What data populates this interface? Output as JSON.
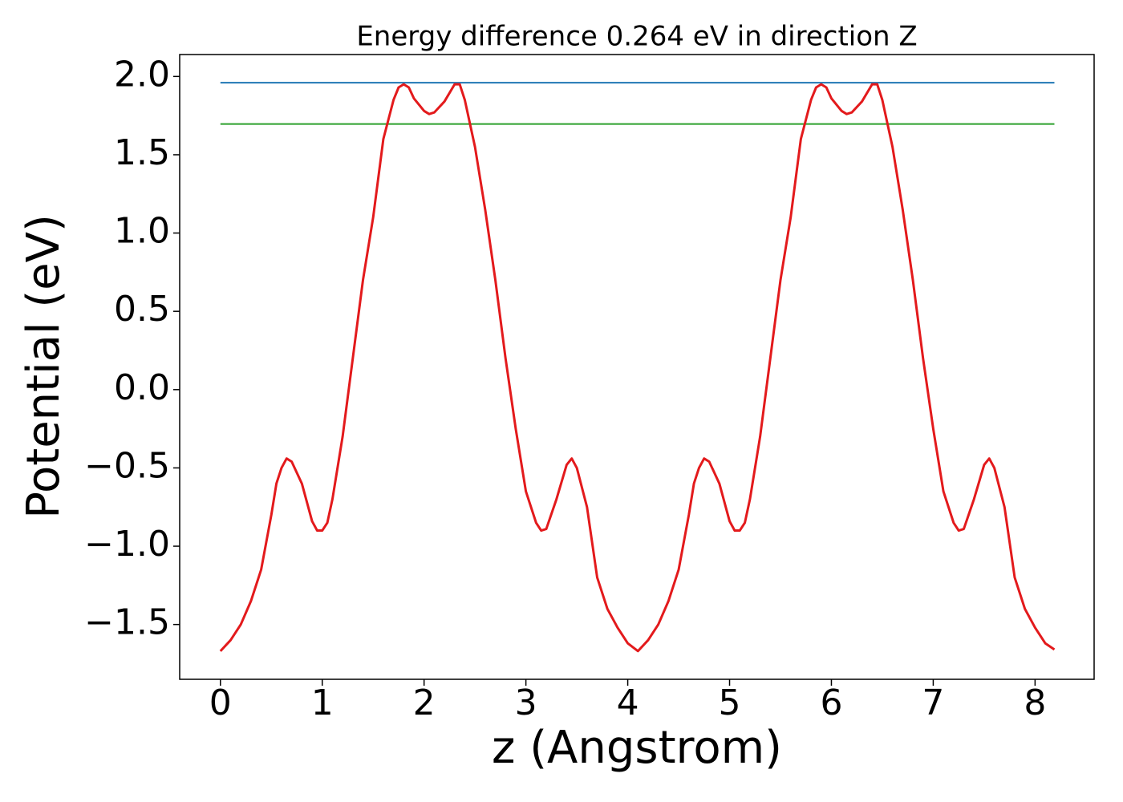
{
  "chart_data": {
    "type": "line",
    "title": "Energy difference 0.264 eV in direction Z",
    "xlabel": "z (Angstrom)",
    "ylabel": "Potential (eV)",
    "xlim": [
      -0.4,
      8.58
    ],
    "ylim": [
      -1.85,
      2.14
    ],
    "xticks": [
      0,
      1,
      2,
      3,
      4,
      5,
      6,
      7,
      8
    ],
    "yticks": [
      {
        "value": -1.5,
        "label": "−1.5"
      },
      {
        "value": -1.0,
        "label": "−1.0"
      },
      {
        "value": -0.5,
        "label": "−0.5"
      },
      {
        "value": 0.0,
        "label": "0.0"
      },
      {
        "value": 0.5,
        "label": "0.5"
      },
      {
        "value": 1.0,
        "label": "1.0"
      },
      {
        "value": 1.5,
        "label": "1.5"
      },
      {
        "value": 2.0,
        "label": "2.0"
      }
    ],
    "grid": false,
    "series": [
      {
        "color": "#1f77b4",
        "x": [
          0,
          8.19
        ],
        "values": [
          1.96,
          1.96
        ]
      },
      {
        "color": "#2ca02c",
        "x": [
          0,
          8.19
        ],
        "values": [
          1.696,
          1.696
        ]
      },
      {
        "color": "#e31a1c",
        "x": [
          0,
          0.1,
          0.2,
          0.3,
          0.4,
          0.5,
          0.55,
          0.6,
          0.65,
          0.7,
          0.8,
          0.9,
          0.95,
          1.0,
          1.05,
          1.1,
          1.2,
          1.3,
          1.4,
          1.5,
          1.6,
          1.7,
          1.75,
          1.8,
          1.85,
          1.9,
          2.0,
          2.05,
          2.1,
          2.2,
          2.3,
          2.35,
          2.4,
          2.5,
          2.6,
          2.7,
          2.8,
          2.9,
          3.0,
          3.1,
          3.15,
          3.2,
          3.3,
          3.4,
          3.45,
          3.5,
          3.6,
          3.7,
          3.8,
          3.9,
          4.0,
          4.1,
          4.2,
          4.3,
          4.4,
          4.5,
          4.6,
          4.65,
          4.7,
          4.75,
          4.8,
          4.9,
          5.0,
          5.05,
          5.1,
          5.15,
          5.2,
          5.3,
          5.4,
          5.5,
          5.6,
          5.7,
          5.8,
          5.85,
          5.9,
          5.95,
          6.0,
          6.1,
          6.15,
          6.2,
          6.3,
          6.4,
          6.45,
          6.5,
          6.6,
          6.7,
          6.8,
          6.9,
          7.0,
          7.1,
          7.2,
          7.25,
          7.3,
          7.4,
          7.5,
          7.55,
          7.6,
          7.7,
          7.8,
          7.9,
          8.0,
          8.1,
          8.19
        ],
        "values": [
          -1.67,
          -1.6,
          -1.5,
          -1.35,
          -1.15,
          -0.8,
          -0.6,
          -0.5,
          -0.44,
          -0.46,
          -0.6,
          -0.84,
          -0.9,
          -0.9,
          -0.85,
          -0.7,
          -0.3,
          0.2,
          0.7,
          1.1,
          1.6,
          1.85,
          1.93,
          1.95,
          1.93,
          1.86,
          1.78,
          1.76,
          1.77,
          1.84,
          1.95,
          1.95,
          1.85,
          1.55,
          1.15,
          0.7,
          0.2,
          -0.25,
          -0.65,
          -0.85,
          -0.9,
          -0.89,
          -0.7,
          -0.48,
          -0.44,
          -0.5,
          -0.75,
          -1.2,
          -1.4,
          -1.52,
          -1.62,
          -1.67,
          -1.6,
          -1.5,
          -1.35,
          -1.15,
          -0.8,
          -0.6,
          -0.5,
          -0.44,
          -0.46,
          -0.6,
          -0.84,
          -0.9,
          -0.9,
          -0.85,
          -0.7,
          -0.3,
          0.2,
          0.7,
          1.1,
          1.6,
          1.85,
          1.93,
          1.95,
          1.93,
          1.86,
          1.78,
          1.76,
          1.77,
          1.84,
          1.95,
          1.95,
          1.85,
          1.55,
          1.15,
          0.7,
          0.2,
          -0.25,
          -0.65,
          -0.85,
          -0.9,
          -0.89,
          -0.7,
          -0.48,
          -0.44,
          -0.5,
          -0.75,
          -1.2,
          -1.4,
          -1.52,
          -1.62,
          -1.66
        ]
      }
    ]
  }
}
